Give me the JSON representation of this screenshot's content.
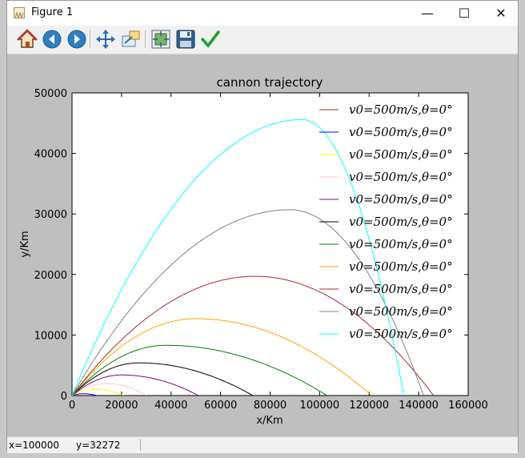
{
  "window": {
    "title": "Figure 1"
  },
  "titlebar_buttons": {
    "minimize": "—",
    "maximize": "☐",
    "close": "✕"
  },
  "toolbar": {
    "buttons": [
      {
        "name": "home",
        "icon": "home-icon"
      },
      {
        "name": "back",
        "icon": "arrow-left-icon"
      },
      {
        "name": "forward",
        "icon": "arrow-right-icon"
      },
      {
        "name": "pan",
        "icon": "move-icon"
      },
      {
        "name": "zoom",
        "icon": "zoom-rect-icon"
      },
      {
        "name": "configure",
        "icon": "subplots-icon"
      },
      {
        "name": "save",
        "icon": "floppy-icon"
      },
      {
        "name": "edit",
        "icon": "checkmark-icon"
      }
    ]
  },
  "status": {
    "x_text": "x=100000",
    "y_text": "y=32272"
  },
  "chart_data": {
    "type": "line",
    "title": "cannon trajectory",
    "xlabel": "x/Km",
    "ylabel": "y/Km",
    "xlim": [
      0,
      160000
    ],
    "ylim": [
      0,
      50000
    ],
    "xticks": [
      0,
      20000,
      40000,
      60000,
      80000,
      100000,
      120000,
      140000,
      160000
    ],
    "yticks": [
      0,
      10000,
      20000,
      30000,
      40000,
      50000
    ],
    "legend_position": "upper-right",
    "series": [
      {
        "name": "v0=500m/s,θ=0°",
        "color": "#b22222",
        "peak_x": 0,
        "peak_y": 0,
        "range": 0
      },
      {
        "name": "v0=500m/s,θ=0°",
        "color": "#0000ff",
        "peak_x": 4500,
        "peak_y": 300,
        "range": 10000
      },
      {
        "name": "v0=500m/s,θ=0°",
        "color": "#ffff00",
        "peak_x": 9500,
        "peak_y": 1000,
        "range": 21000
      },
      {
        "name": "v0=500m/s,θ=0°",
        "color": "#ffc0cb",
        "peak_x": 14000,
        "peak_y": 2000,
        "range": 30000
      },
      {
        "name": "v0=500m/s,θ=0°",
        "color": "#800080",
        "peak_x": 20000,
        "peak_y": 3400,
        "range": 51000
      },
      {
        "name": "v0=500m/s,θ=0°",
        "color": "#000000",
        "peak_x": 27000,
        "peak_y": 5400,
        "range": 73000
      },
      {
        "name": "v0=500m/s,θ=0°",
        "color": "#008000",
        "peak_x": 38000,
        "peak_y": 8300,
        "range": 103000
      },
      {
        "name": "v0=500m/s,θ=0°",
        "color": "#ffa500",
        "peak_x": 50000,
        "peak_y": 12700,
        "range": 121000
      },
      {
        "name": "v0=500m/s,θ=0°",
        "color": "#a52a2a",
        "peak_x": 74000,
        "peak_y": 19700,
        "range": 146000
      },
      {
        "name": "v0=500m/s,θ=0°",
        "color": "#808080",
        "peak_x": 88000,
        "peak_y": 30700,
        "range": 142000
      },
      {
        "name": "v0=500m/s,θ=0°",
        "color": "#00ffff",
        "peak_x": 93000,
        "peak_y": 45600,
        "range": 134000
      }
    ]
  }
}
